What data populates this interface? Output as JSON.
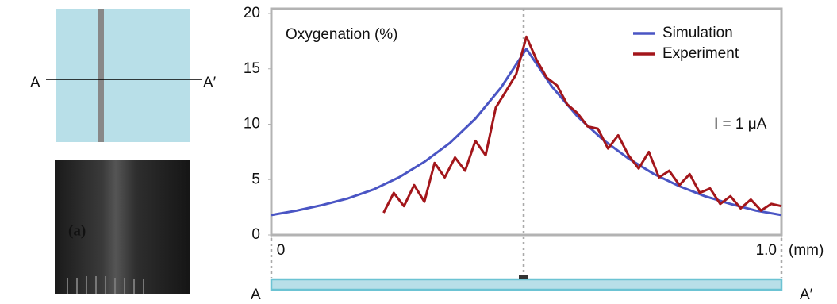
{
  "figure": {
    "panel_label": "(a)",
    "diagram_labels": [
      "A",
      "A′"
    ],
    "strip_labels": [
      "A",
      "A′"
    ]
  },
  "chart_data": {
    "type": "line",
    "annotation_title": "Oxygenation (%)",
    "annotation": "I = 1 μA",
    "x_label": "(mm)",
    "xlim": [
      0,
      1
    ],
    "xticks": [
      0,
      {
        "value": 1,
        "label": "1.0"
      }
    ],
    "ylim": [
      0,
      20
    ],
    "yticks": [
      0,
      5,
      10,
      15,
      20
    ],
    "grid": false,
    "legend": "upper right",
    "series": [
      {
        "name": "Simulation",
        "color": "#4a55c4",
        "x": [
          0,
          0.05,
          0.1,
          0.15,
          0.2,
          0.25,
          0.3,
          0.35,
          0.4,
          0.45,
          0.5,
          0.55,
          0.6,
          0.65,
          0.7,
          0.75,
          0.8,
          0.85,
          0.9,
          0.95,
          1.0
        ],
        "values": [
          1.8,
          2.2,
          2.7,
          3.3,
          4.1,
          5.2,
          6.6,
          8.3,
          10.5,
          13.3,
          16.8,
          13.4,
          10.7,
          8.6,
          6.9,
          5.5,
          4.4,
          3.5,
          2.8,
          2.2,
          1.8
        ]
      },
      {
        "name": "Experiment",
        "color": "#a3161b",
        "x": [
          0.22,
          0.24,
          0.26,
          0.28,
          0.3,
          0.32,
          0.34,
          0.36,
          0.38,
          0.4,
          0.42,
          0.44,
          0.46,
          0.48,
          0.5,
          0.52,
          0.54,
          0.56,
          0.58,
          0.6,
          0.62,
          0.64,
          0.66,
          0.68,
          0.7,
          0.72,
          0.74,
          0.76,
          0.78,
          0.8,
          0.82,
          0.84,
          0.86,
          0.88,
          0.9,
          0.92,
          0.94,
          0.96,
          0.98,
          1.0
        ],
        "values": [
          2.0,
          3.8,
          2.6,
          4.5,
          3.0,
          6.5,
          5.2,
          7.0,
          5.8,
          8.5,
          7.2,
          11.5,
          13.0,
          14.5,
          17.9,
          15.8,
          14.2,
          13.5,
          11.8,
          11.0,
          9.8,
          9.6,
          7.8,
          9.0,
          7.2,
          6.0,
          7.5,
          5.2,
          5.8,
          4.5,
          5.5,
          3.8,
          4.2,
          2.8,
          3.5,
          2.4,
          3.2,
          2.2,
          2.8,
          2.6
        ]
      }
    ]
  }
}
